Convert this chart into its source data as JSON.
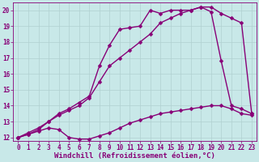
{
  "xlabel": "Windchill (Refroidissement éolien,°C)",
  "bg_color": "#c8e8e8",
  "line_color": "#880077",
  "grid_color": "#b0d0d0",
  "xlim": [
    -0.5,
    23.5
  ],
  "ylim": [
    11.8,
    20.5
  ],
  "xticks": [
    0,
    1,
    2,
    3,
    4,
    5,
    6,
    7,
    8,
    9,
    10,
    11,
    12,
    13,
    14,
    15,
    16,
    17,
    18,
    19,
    20,
    21,
    22,
    23
  ],
  "yticks": [
    12,
    13,
    14,
    15,
    16,
    17,
    18,
    19,
    20
  ],
  "line1_x": [
    0,
    1,
    2,
    3,
    4,
    5,
    6,
    7,
    8,
    9,
    10,
    11,
    12,
    13,
    14,
    15,
    16,
    17,
    18,
    19,
    20,
    21,
    22,
    23
  ],
  "line1_y": [
    12,
    12.2,
    12.4,
    12.6,
    12.5,
    12.0,
    11.9,
    11.9,
    12.1,
    12.3,
    12.6,
    12.9,
    13.1,
    13.3,
    13.5,
    13.6,
    13.7,
    13.8,
    13.9,
    14.0,
    14.0,
    13.8,
    13.5,
    13.4
  ],
  "line2_x": [
    0,
    1,
    2,
    3,
    4,
    5,
    6,
    7,
    8,
    9,
    10,
    11,
    12,
    13,
    14,
    15,
    16,
    17,
    18,
    19,
    20,
    21,
    22,
    23
  ],
  "line2_y": [
    12,
    12.3,
    12.6,
    13.0,
    13.5,
    13.8,
    14.2,
    14.6,
    16.5,
    17.8,
    18.8,
    18.9,
    19.0,
    20.0,
    19.8,
    20.0,
    20.0,
    20.0,
    20.2,
    19.9,
    16.8,
    14.0,
    13.8,
    13.5
  ],
  "line3_x": [
    0,
    1,
    2,
    3,
    4,
    5,
    6,
    7,
    8,
    9,
    10,
    11,
    12,
    13,
    14,
    15,
    16,
    17,
    18,
    19,
    20,
    21,
    22,
    23
  ],
  "line3_y": [
    12,
    12.2,
    12.5,
    13.0,
    13.4,
    13.7,
    14.0,
    14.5,
    15.5,
    16.5,
    17.0,
    17.5,
    18.0,
    18.5,
    19.2,
    19.5,
    19.8,
    20.0,
    20.2,
    20.2,
    19.8,
    19.5,
    19.2,
    13.5
  ],
  "marker": "D",
  "markersize": 2.5,
  "linewidth": 1.0,
  "tick_fontsize": 5.5,
  "xlabel_fontsize": 6.5
}
